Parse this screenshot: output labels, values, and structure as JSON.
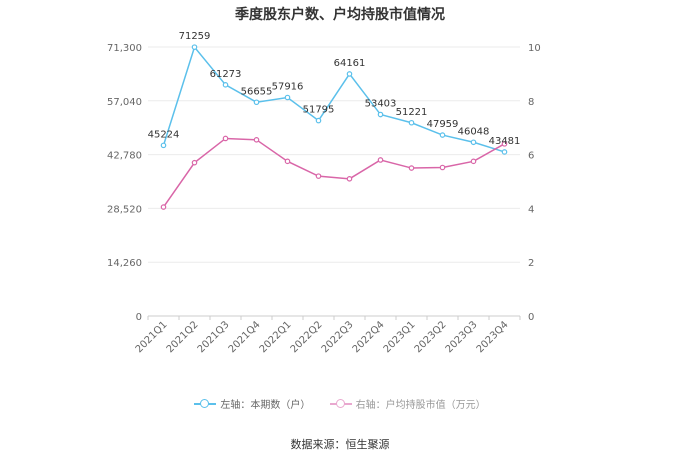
{
  "chart_data": {
    "type": "line",
    "title": "季度股东户数、户均持股市值情况",
    "categories": [
      "2021Q1",
      "2021Q2",
      "2021Q3",
      "2021Q4",
      "2022Q1",
      "2022Q2",
      "2022Q3",
      "2022Q4",
      "2023Q1",
      "2023Q2",
      "2023Q3",
      "2023Q4"
    ],
    "left_axis": {
      "ylim": [
        0,
        71300
      ],
      "ticks": [
        0,
        14260,
        28520,
        42780,
        57040,
        71300
      ],
      "tick_labels": [
        "0",
        "14,260",
        "28,520",
        "42,780",
        "57,040",
        "71,300"
      ]
    },
    "right_axis": {
      "ylim": [
        0,
        10
      ],
      "ticks": [
        0,
        2,
        4,
        6,
        8,
        10
      ],
      "tick_labels": [
        "0",
        "2",
        "4",
        "6",
        "8",
        "10"
      ]
    },
    "series": [
      {
        "name": "左轴：本期数（户）",
        "axis": "left",
        "color": "#5bc0eb",
        "values": [
          45224,
          71259,
          61273,
          56655,
          57916,
          51795,
          64161,
          53403,
          51221,
          47959,
          46048,
          43481
        ],
        "labels": [
          "45224",
          "71259",
          "61273",
          "56655",
          "57916",
          "51795",
          "64161",
          "53403",
          "51221",
          "47959",
          "46048",
          "43481"
        ]
      },
      {
        "name": "右轴：户均持股市值（万元）",
        "axis": "right",
        "color": "#d966a8",
        "values": [
          4.05,
          5.7,
          6.6,
          6.55,
          5.75,
          5.2,
          5.1,
          5.8,
          5.5,
          5.52,
          5.75,
          6.4
        ]
      }
    ],
    "grid": true,
    "legend_position": "bottom"
  },
  "source": "数据来源：恒生聚源"
}
